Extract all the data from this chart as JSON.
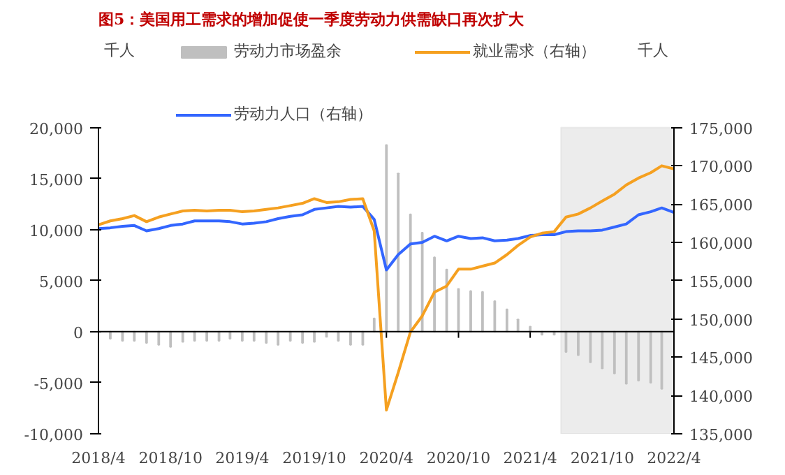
{
  "chart_data": {
    "type": "bar",
    "title": "图5：美国用工需求的增加促使一季度劳动力供需缺口再次扩大",
    "ylabel": "千人",
    "y2label": "千人",
    "x": [
      "2018-04",
      "2018-05",
      "2018-06",
      "2018-07",
      "2018-08",
      "2018-09",
      "2018-10",
      "2018-11",
      "2018-12",
      "2019-01",
      "2019-02",
      "2019-03",
      "2019-04",
      "2019-05",
      "2019-06",
      "2019-07",
      "2019-08",
      "2019-09",
      "2019-10",
      "2019-11",
      "2019-12",
      "2020-01",
      "2020-02",
      "2020-03",
      "2020-04",
      "2020-05",
      "2020-06",
      "2020-07",
      "2020-08",
      "2020-09",
      "2020-10",
      "2020-11",
      "2020-12",
      "2021-01",
      "2021-02",
      "2021-03",
      "2021-04",
      "2021-05",
      "2021-06",
      "2021-07",
      "2021-08",
      "2021-09",
      "2021-10",
      "2021-11",
      "2021-12",
      "2022-01",
      "2022-02",
      "2022-03",
      "2022-04"
    ],
    "series": [
      {
        "name": "劳动力市场盈余",
        "color": "#bfbfbf",
        "values": [
          null,
          -700,
          -900,
          -900,
          -1100,
          -1300,
          -1500,
          -1000,
          -900,
          -900,
          -900,
          -700,
          -900,
          -900,
          -1100,
          -1300,
          -900,
          -1100,
          -1000,
          -500,
          -900,
          -1300,
          -1300,
          1300,
          18300,
          15500,
          11500,
          9700,
          7300,
          6100,
          4200,
          4000,
          3900,
          3000,
          2200,
          1200,
          500,
          -300,
          -300,
          -2000,
          -2300,
          -3000,
          -3600,
          -4100,
          -5100,
          -4800,
          -5000,
          -5600,
          null
        ]
      },
      {
        "name": "劳动力人口（右轴）",
        "type": "line",
        "axis": "y2",
        "color": "#3366ff",
        "values": [
          161800,
          161900,
          162100,
          162200,
          161500,
          161800,
          162200,
          162400,
          162800,
          162800,
          162800,
          162700,
          162400,
          162500,
          162700,
          163100,
          163400,
          163600,
          164300,
          164500,
          164700,
          164600,
          164700,
          163000,
          156400,
          158400,
          159800,
          160000,
          160800,
          160200,
          160800,
          160500,
          160600,
          160200,
          160300,
          160500,
          160900,
          161000,
          161000,
          161400,
          161500,
          161500,
          161600,
          162000,
          162400,
          163600,
          164000,
          164500,
          163900
        ]
      },
      {
        "name": "就业需求（右轴）",
        "type": "line",
        "axis": "y2",
        "color": "#f5a020",
        "values": [
          162300,
          162800,
          163100,
          163500,
          162700,
          163300,
          163700,
          164100,
          164200,
          164100,
          164200,
          164200,
          164000,
          164100,
          164300,
          164500,
          164800,
          165100,
          165700,
          165200,
          165300,
          165600,
          165700,
          161500,
          138100,
          143000,
          148300,
          150400,
          153500,
          154300,
          156500,
          156500,
          156900,
          157300,
          158400,
          159600,
          160700,
          161200,
          161400,
          163300,
          163700,
          164500,
          165400,
          166300,
          167500,
          168400,
          169100,
          170000,
          169600
        ]
      }
    ],
    "xlim": [
      "2018-04",
      "2022-04"
    ],
    "xticks": [
      {
        "value": "2018-04",
        "label": "2018/4"
      },
      {
        "value": "2018-10",
        "label": "2018/10"
      },
      {
        "value": "2019-04",
        "label": "2019/4"
      },
      {
        "value": "2019-10",
        "label": "2019/10"
      },
      {
        "value": "2020-04",
        "label": "2020/4"
      },
      {
        "value": "2020-10",
        "label": "2020/10"
      },
      {
        "value": "2021-04",
        "label": "2021/4"
      },
      {
        "value": "2021-10",
        "label": "2021/10"
      },
      {
        "value": "2022-04",
        "label": "2022/4"
      }
    ],
    "ylim": [
      -10000,
      20000
    ],
    "yticks": [
      {
        "value": -10000,
        "label": "-10,000"
      },
      {
        "value": -5000,
        "label": "-5,000"
      },
      0,
      {
        "value": 5000,
        "label": "5,000"
      },
      {
        "value": 10000,
        "label": "10,000"
      },
      {
        "value": 15000,
        "label": "15,000"
      },
      {
        "value": 20000,
        "label": "20,000"
      }
    ],
    "y2lim": [
      135000,
      175000
    ],
    "y2ticks": [
      {
        "value": 135000,
        "label": "135,000"
      },
      {
        "value": 140000,
        "label": "140,000"
      },
      {
        "value": 145000,
        "label": "145,000"
      },
      {
        "value": 150000,
        "label": "150,000"
      },
      {
        "value": 155000,
        "label": "155,000"
      },
      {
        "value": 160000,
        "label": "160,000"
      },
      {
        "value": 165000,
        "label": "165,000"
      },
      {
        "value": 170000,
        "label": "170,000"
      },
      {
        "value": 175000,
        "label": "175,000"
      }
    ],
    "bands": [
      {
        "axis": "x",
        "from": "2021-06-18",
        "to": "2022-04",
        "color": "#ececec"
      }
    ],
    "ref_lines": [
      {
        "axis": "y",
        "value": 0,
        "color": "#000000"
      }
    ],
    "grid": false,
    "legend": "top"
  }
}
